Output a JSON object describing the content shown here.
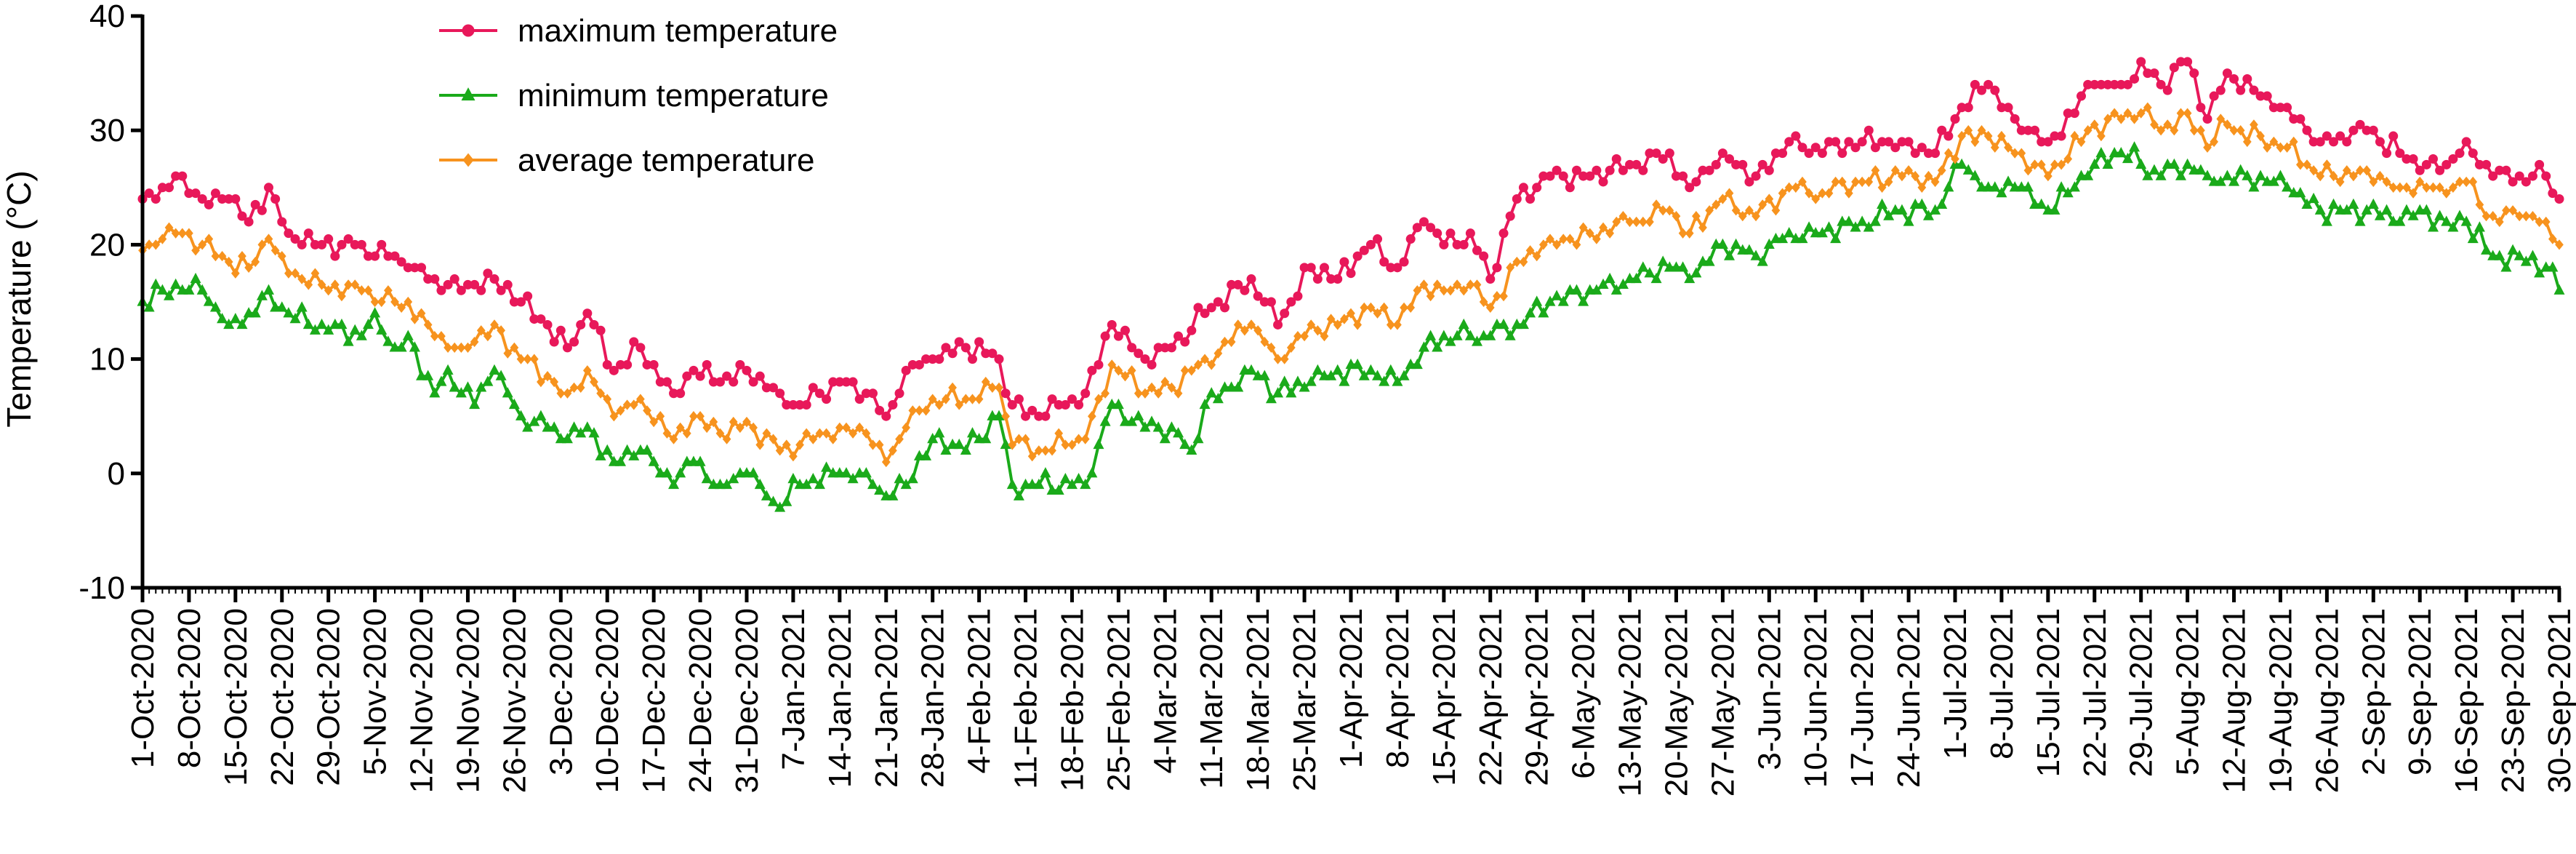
{
  "chart_data": {
    "type": "line",
    "title": "",
    "xlabel": "",
    "ylabel": "Temperature (°C)",
    "ylim": [
      -10,
      40
    ],
    "yticks": [
      -10,
      0,
      10,
      20,
      30,
      40
    ],
    "x_start": "2020-10-01",
    "x_end": "2021-09-30",
    "xtick_labels": [
      "1-Oct-2020",
      "8-Oct-2020",
      "15-Oct-2020",
      "22-Oct-2020",
      "29-Oct-2020",
      "5-Nov-2020",
      "12-Nov-2020",
      "19-Nov-2020",
      "26-Nov-2020",
      "3-Dec-2020",
      "10-Dec-2020",
      "17-Dec-2020",
      "24-Dec-2020",
      "31-Dec-2020",
      "7-Jan-2021",
      "14-Jan-2021",
      "21-Jan-2021",
      "28-Jan-2021",
      "4-Feb-2021",
      "11-Feb-2021",
      "18-Feb-2021",
      "25-Feb-2021",
      "4-Mar-2021",
      "11-Mar-2021",
      "18-Mar-2021",
      "25-Mar-2021",
      "1-Apr-2021",
      "8-Apr-2021",
      "15-Apr-2021",
      "22-Apr-2021",
      "29-Apr-2021",
      "6-May-2021",
      "13-May-2021",
      "20-May-2021",
      "27-May-2021",
      "3-Jun-2021",
      "10-Jun-2021",
      "17-Jun-2021",
      "24-Jun-2021",
      "1-Jul-2021",
      "8-Jul-2021",
      "15-Jul-2021",
      "22-Jul-2021",
      "29-Jul-2021",
      "5-Aug-2021",
      "12-Aug-2021",
      "19-Aug-2021",
      "26-Aug-2021",
      "2-Sep-2021",
      "9-Sep-2021",
      "16-Sep-2021",
      "23-Sep-2021",
      "30-Sep-2021"
    ],
    "legend": {
      "placement": "top-left"
    },
    "series": [
      {
        "name": "maximum temperature",
        "color": "#e8185a",
        "marker": "circle",
        "anchors": [
          [
            "2020-10-01",
            24
          ],
          [
            "2020-10-04",
            25
          ],
          [
            "2020-10-07",
            26
          ],
          [
            "2020-10-10",
            24
          ],
          [
            "2020-10-14",
            24
          ],
          [
            "2020-10-17",
            22
          ],
          [
            "2020-10-20",
            25
          ],
          [
            "2020-10-23",
            21
          ],
          [
            "2020-10-28",
            20
          ],
          [
            "2020-11-03",
            20
          ],
          [
            "2020-11-08",
            19
          ],
          [
            "2020-11-10",
            18
          ],
          [
            "2020-11-14",
            17
          ],
          [
            "2020-11-18",
            16
          ],
          [
            "2020-11-23",
            17
          ],
          [
            "2020-11-27",
            15
          ],
          [
            "2020-12-01",
            13
          ],
          [
            "2020-12-04",
            11
          ],
          [
            "2020-12-07",
            14
          ],
          [
            "2020-12-11",
            9
          ],
          [
            "2020-12-15",
            11
          ],
          [
            "2020-12-20",
            7
          ],
          [
            "2020-12-23",
            9
          ],
          [
            "2020-12-27",
            8
          ],
          [
            "2020-12-31",
            9
          ],
          [
            "2021-01-05",
            7
          ],
          [
            "2021-01-08",
            6
          ],
          [
            "2021-01-14",
            8
          ],
          [
            "2021-01-18",
            7
          ],
          [
            "2021-01-21",
            5
          ],
          [
            "2021-01-24",
            9
          ],
          [
            "2021-01-28",
            10
          ],
          [
            "2021-02-02",
            11
          ],
          [
            "2021-02-07",
            10
          ],
          [
            "2021-02-09",
            6
          ],
          [
            "2021-02-13",
            5
          ],
          [
            "2021-02-20",
            7
          ],
          [
            "2021-02-24",
            13
          ],
          [
            "2021-03-01",
            10
          ],
          [
            "2021-03-05",
            11
          ],
          [
            "2021-03-10",
            14
          ],
          [
            "2021-03-17",
            17
          ],
          [
            "2021-03-21",
            13
          ],
          [
            "2021-03-26",
            18
          ],
          [
            "2021-03-30",
            17
          ],
          [
            "2021-04-04",
            20
          ],
          [
            "2021-04-08",
            18
          ],
          [
            "2021-04-12",
            22
          ],
          [
            "2021-04-15",
            20
          ],
          [
            "2021-04-19",
            21
          ],
          [
            "2021-04-22",
            17
          ],
          [
            "2021-04-26",
            24
          ],
          [
            "2021-05-01",
            26
          ],
          [
            "2021-05-07",
            26
          ],
          [
            "2021-05-13",
            27
          ],
          [
            "2021-05-19",
            28
          ],
          [
            "2021-05-22",
            25
          ],
          [
            "2021-05-27",
            28
          ],
          [
            "2021-06-01",
            26
          ],
          [
            "2021-06-06",
            29
          ],
          [
            "2021-06-11",
            28
          ],
          [
            "2021-06-17",
            29
          ],
          [
            "2021-06-23",
            29
          ],
          [
            "2021-06-28",
            28
          ],
          [
            "2021-07-02",
            32
          ],
          [
            "2021-07-06",
            34
          ],
          [
            "2021-07-10",
            31
          ],
          [
            "2021-07-15",
            29
          ],
          [
            "2021-07-22",
            34
          ],
          [
            "2021-07-26",
            34
          ],
          [
            "2021-07-29",
            36
          ],
          [
            "2021-08-01",
            34
          ],
          [
            "2021-08-05",
            36
          ],
          [
            "2021-08-08",
            31
          ],
          [
            "2021-08-11",
            35
          ],
          [
            "2021-08-16",
            33
          ],
          [
            "2021-08-20",
            32
          ],
          [
            "2021-08-25",
            29
          ],
          [
            "2021-09-01",
            30
          ],
          [
            "2021-09-06",
            28
          ],
          [
            "2021-09-10",
            27
          ],
          [
            "2021-09-13",
            27
          ],
          [
            "2021-09-16",
            29
          ],
          [
            "2021-09-20",
            26
          ],
          [
            "2021-09-24",
            26
          ],
          [
            "2021-09-28",
            26
          ],
          [
            "2021-09-30",
            24
          ]
        ]
      },
      {
        "name": "minimum temperature",
        "color": "#1aaa1a",
        "marker": "triangle",
        "anchors": [
          [
            "2020-10-01",
            15
          ],
          [
            "2020-10-04",
            16
          ],
          [
            "2020-10-07",
            16
          ],
          [
            "2020-10-10",
            16
          ],
          [
            "2020-10-14",
            13
          ],
          [
            "2020-10-17",
            14
          ],
          [
            "2020-10-20",
            16
          ],
          [
            "2020-10-23",
            14
          ],
          [
            "2020-10-28",
            13
          ],
          [
            "2020-11-03",
            12
          ],
          [
            "2020-11-05",
            14
          ],
          [
            "2020-11-08",
            11
          ],
          [
            "2020-11-10",
            12
          ],
          [
            "2020-11-14",
            7
          ],
          [
            "2020-11-16",
            9
          ],
          [
            "2020-11-20",
            6
          ],
          [
            "2020-11-23",
            9
          ],
          [
            "2020-11-27",
            5
          ],
          [
            "2020-12-01",
            4
          ],
          [
            "2020-12-04",
            3
          ],
          [
            "2020-12-07",
            4
          ],
          [
            "2020-12-11",
            1
          ],
          [
            "2020-12-15",
            2
          ],
          [
            "2020-12-20",
            -1
          ],
          [
            "2020-12-23",
            1
          ],
          [
            "2020-12-27",
            -1
          ],
          [
            "2020-12-31",
            0
          ],
          [
            "2021-01-03",
            -2
          ],
          [
            "2021-01-05",
            -3
          ],
          [
            "2021-01-08",
            -1
          ],
          [
            "2021-01-14",
            0
          ],
          [
            "2021-01-18",
            0
          ],
          [
            "2021-01-21",
            -2
          ],
          [
            "2021-01-24",
            -1
          ],
          [
            "2021-01-28",
            3
          ],
          [
            "2021-02-02",
            2
          ],
          [
            "2021-02-07",
            5
          ],
          [
            "2021-02-09",
            -1
          ],
          [
            "2021-02-13",
            -1
          ],
          [
            "2021-02-20",
            -1
          ],
          [
            "2021-02-24",
            6
          ],
          [
            "2021-03-01",
            4
          ],
          [
            "2021-03-05",
            4
          ],
          [
            "2021-03-08",
            2
          ],
          [
            "2021-03-10",
            6
          ],
          [
            "2021-03-17",
            9
          ],
          [
            "2021-03-21",
            7
          ],
          [
            "2021-03-26",
            8
          ],
          [
            "2021-03-30",
            9
          ],
          [
            "2021-04-04",
            9
          ],
          [
            "2021-04-08",
            8
          ],
          [
            "2021-04-12",
            11
          ],
          [
            "2021-04-15",
            12
          ],
          [
            "2021-04-19",
            12
          ],
          [
            "2021-04-22",
            12
          ],
          [
            "2021-04-26",
            13
          ],
          [
            "2021-05-01",
            15
          ],
          [
            "2021-05-07",
            16
          ],
          [
            "2021-05-13",
            17
          ],
          [
            "2021-05-19",
            18
          ],
          [
            "2021-05-22",
            17
          ],
          [
            "2021-05-27",
            20
          ],
          [
            "2021-06-01",
            19
          ],
          [
            "2021-06-06",
            21
          ],
          [
            "2021-06-11",
            21
          ],
          [
            "2021-06-17",
            22
          ],
          [
            "2021-06-23",
            23
          ],
          [
            "2021-06-28",
            23
          ],
          [
            "2021-07-02",
            27
          ],
          [
            "2021-07-06",
            25
          ],
          [
            "2021-07-10",
            25
          ],
          [
            "2021-07-15",
            23
          ],
          [
            "2021-07-22",
            27
          ],
          [
            "2021-07-26",
            28
          ],
          [
            "2021-07-29",
            27
          ],
          [
            "2021-08-01",
            26
          ],
          [
            "2021-08-05",
            27
          ],
          [
            "2021-08-08",
            26
          ],
          [
            "2021-08-11",
            26
          ],
          [
            "2021-08-16",
            26
          ],
          [
            "2021-08-20",
            25
          ],
          [
            "2021-08-25",
            23
          ],
          [
            "2021-09-01",
            23
          ],
          [
            "2021-09-06",
            22
          ],
          [
            "2021-09-10",
            23
          ],
          [
            "2021-09-13",
            22
          ],
          [
            "2021-09-16",
            22
          ],
          [
            "2021-09-20",
            19
          ],
          [
            "2021-09-24",
            19
          ],
          [
            "2021-09-28",
            18
          ],
          [
            "2021-09-30",
            16
          ]
        ]
      },
      {
        "name": "average temperature",
        "color": "#f7931e",
        "marker": "diamond",
        "anchors": [
          [
            "2020-10-01",
            19.5
          ],
          [
            "2020-10-04",
            20.5
          ],
          [
            "2020-10-07",
            21
          ],
          [
            "2020-10-10",
            20
          ],
          [
            "2020-10-14",
            18.5
          ],
          [
            "2020-10-17",
            18
          ],
          [
            "2020-10-20",
            20.5
          ],
          [
            "2020-10-23",
            17.5
          ],
          [
            "2020-10-28",
            16.5
          ],
          [
            "2020-11-03",
            16
          ],
          [
            "2020-11-08",
            15
          ],
          [
            "2020-11-10",
            15
          ],
          [
            "2020-11-14",
            12
          ],
          [
            "2020-11-18",
            11
          ],
          [
            "2020-11-23",
            13
          ],
          [
            "2020-11-27",
            10
          ],
          [
            "2020-12-01",
            8.5
          ],
          [
            "2020-12-04",
            7
          ],
          [
            "2020-12-07",
            9
          ],
          [
            "2020-12-11",
            5
          ],
          [
            "2020-12-15",
            6.5
          ],
          [
            "2020-12-20",
            3
          ],
          [
            "2020-12-23",
            5
          ],
          [
            "2020-12-27",
            3.5
          ],
          [
            "2020-12-31",
            4.5
          ],
          [
            "2021-01-05",
            2
          ],
          [
            "2021-01-08",
            2.5
          ],
          [
            "2021-01-14",
            4
          ],
          [
            "2021-01-18",
            3.5
          ],
          [
            "2021-01-21",
            1
          ],
          [
            "2021-01-24",
            4
          ],
          [
            "2021-01-28",
            6.5
          ],
          [
            "2021-02-02",
            6.5
          ],
          [
            "2021-02-07",
            7.5
          ],
          [
            "2021-02-09",
            2.5
          ],
          [
            "2021-02-13",
            2
          ],
          [
            "2021-02-20",
            3
          ],
          [
            "2021-02-24",
            9.5
          ],
          [
            "2021-03-01",
            7
          ],
          [
            "2021-03-05",
            7.5
          ],
          [
            "2021-03-10",
            10
          ],
          [
            "2021-03-17",
            13
          ],
          [
            "2021-03-21",
            10
          ],
          [
            "2021-03-26",
            13
          ],
          [
            "2021-03-30",
            13
          ],
          [
            "2021-04-04",
            14.5
          ],
          [
            "2021-04-08",
            13
          ],
          [
            "2021-04-12",
            16.5
          ],
          [
            "2021-04-15",
            16
          ],
          [
            "2021-04-19",
            16.5
          ],
          [
            "2021-04-22",
            14.5
          ],
          [
            "2021-04-26",
            18.5
          ],
          [
            "2021-05-01",
            20.5
          ],
          [
            "2021-05-07",
            21
          ],
          [
            "2021-05-13",
            22
          ],
          [
            "2021-05-19",
            23
          ],
          [
            "2021-05-22",
            21
          ],
          [
            "2021-05-27",
            24
          ],
          [
            "2021-06-01",
            22.5
          ],
          [
            "2021-06-06",
            25
          ],
          [
            "2021-06-11",
            24.5
          ],
          [
            "2021-06-17",
            25.5
          ],
          [
            "2021-06-23",
            26
          ],
          [
            "2021-06-28",
            25.5
          ],
          [
            "2021-07-02",
            29.5
          ],
          [
            "2021-07-06",
            29.5
          ],
          [
            "2021-07-10",
            28
          ],
          [
            "2021-07-15",
            26
          ],
          [
            "2021-07-22",
            30.5
          ],
          [
            "2021-07-26",
            31
          ],
          [
            "2021-07-29",
            31.5
          ],
          [
            "2021-08-01",
            30
          ],
          [
            "2021-08-05",
            31.5
          ],
          [
            "2021-08-08",
            28.5
          ],
          [
            "2021-08-11",
            30.5
          ],
          [
            "2021-08-16",
            29.5
          ],
          [
            "2021-08-20",
            28.5
          ],
          [
            "2021-08-25",
            26
          ],
          [
            "2021-09-01",
            26.5
          ],
          [
            "2021-09-06",
            25
          ],
          [
            "2021-09-10",
            25
          ],
          [
            "2021-09-13",
            24.5
          ],
          [
            "2021-09-16",
            25.5
          ],
          [
            "2021-09-20",
            22.5
          ],
          [
            "2021-09-24",
            22.5
          ],
          [
            "2021-09-28",
            22
          ],
          [
            "2021-09-30",
            20
          ]
        ]
      }
    ]
  }
}
